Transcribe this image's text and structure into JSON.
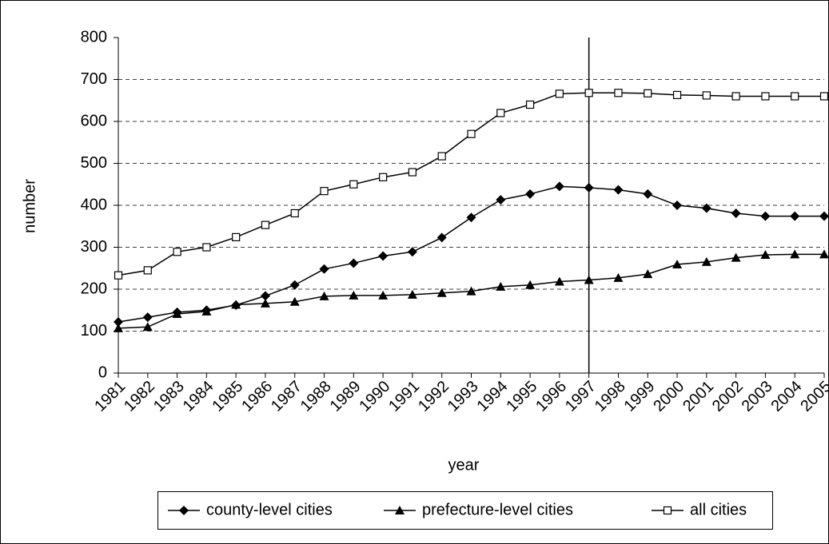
{
  "chart_data": {
    "type": "line",
    "x_label": "year",
    "y_label": "number",
    "categories": [
      "1981",
      "1982",
      "1983",
      "1984",
      "1985",
      "1986",
      "1987",
      "1988",
      "1989",
      "1990",
      "1991",
      "1992",
      "1993",
      "1994",
      "1995",
      "1996",
      "1997",
      "1998",
      "1999",
      "2000",
      "2001",
      "2002",
      "2003",
      "2004",
      "2005"
    ],
    "series": [
      {
        "name": "county-level cities",
        "color": "#000000",
        "marker": "diamond",
        "values": [
          122,
          133,
          145,
          150,
          162,
          184,
          210,
          248,
          262,
          279,
          289,
          323,
          371,
          413,
          427,
          445,
          442,
          437,
          427,
          400,
          393,
          381,
          374,
          374,
          374
        ]
      },
      {
        "name": "prefecture-level cities",
        "color": "#000000",
        "marker": "triangle",
        "values": [
          107,
          110,
          141,
          147,
          163,
          166,
          170,
          183,
          185,
          185,
          187,
          191,
          195,
          206,
          210,
          218,
          222,
          227,
          236,
          259,
          265,
          275,
          282,
          283,
          283
        ]
      },
      {
        "name": "all cities",
        "color": "#000000",
        "marker": "square-open",
        "values": [
          233,
          245,
          289,
          300,
          324,
          353,
          381,
          434,
          450,
          467,
          479,
          517,
          570,
          620,
          640,
          666,
          668,
          668,
          667,
          663,
          662,
          660,
          660,
          660,
          660
        ]
      }
    ],
    "ylim": [
      0,
      800
    ],
    "yticks": [
      0,
      100,
      200,
      300,
      400,
      500,
      600,
      700,
      800
    ],
    "grid": true,
    "vertical_line_at": "1997",
    "legend": "bottom"
  }
}
